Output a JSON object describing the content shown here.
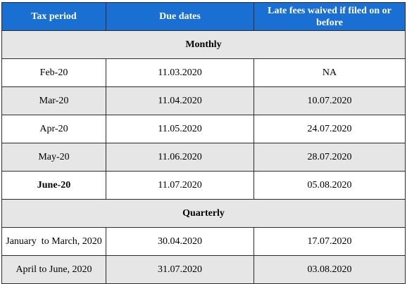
{
  "table": {
    "headers": [
      "Tax period",
      "Due dates",
      "Late fees waived if filed on or before"
    ],
    "groups": [
      {
        "label": "Monthly",
        "rows": [
          {
            "period": "Feb-20",
            "due": "11.03.2020",
            "waived": "NA"
          },
          {
            "period": "Mar-20",
            "due": "11.04.2020",
            "waived": "10.07.2020"
          },
          {
            "period": "Apr-20",
            "due": "11.05.2020",
            "waived": "24.07.2020"
          },
          {
            "period": "May-20",
            "due": "11.06.2020",
            "waived": "28.07.2020"
          },
          {
            "period": "June-20",
            "due": "11.07.2020",
            "waived": "05.08.2020"
          }
        ]
      },
      {
        "label": "Quarterly",
        "rows": [
          {
            "period": "January  to March, 2020",
            "due": "30.04.2020",
            "waived": "17.07.2020"
          },
          {
            "period": "April to June, 2020",
            "due": "31.07.2020",
            "waived": "03.08.2020"
          }
        ]
      }
    ]
  }
}
